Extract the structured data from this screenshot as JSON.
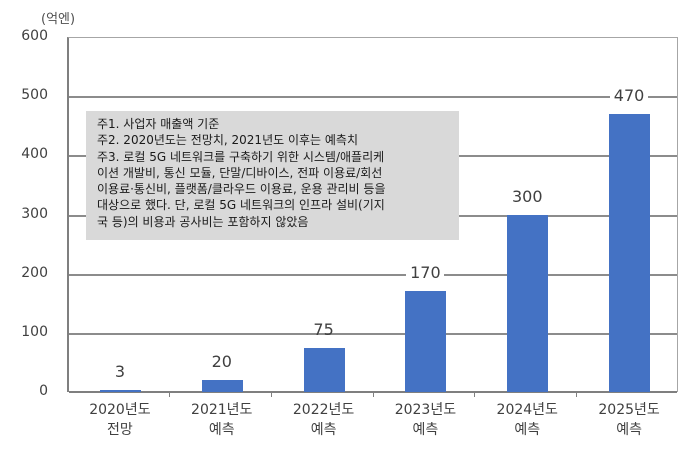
{
  "chart_data": {
    "type": "bar",
    "title": "",
    "unit_label": "(억엔)",
    "xlabel": "",
    "ylabel": "(억엔)",
    "ylim": [
      0,
      600
    ],
    "yticks": [
      "0",
      "100",
      "200",
      "300",
      "400",
      "500",
      "600"
    ],
    "grid": true,
    "bar_color": "#4472c4",
    "categories": [
      "2020년도 전망",
      "2021년도 예측",
      "2022년도 예측",
      "2023년도 예측",
      "2024년도 예측",
      "2025년도 예측"
    ],
    "category_lines": [
      [
        "2020년도",
        "전망"
      ],
      [
        "2021년도",
        "예측"
      ],
      [
        "2022년도",
        "예측"
      ],
      [
        "2023년도",
        "예측"
      ],
      [
        "2024년도",
        "예측"
      ],
      [
        "2025년도",
        "예측"
      ]
    ],
    "values": [
      3,
      20,
      75,
      170,
      300,
      470
    ],
    "data_labels": [
      "3",
      "20",
      "75",
      "170",
      "300",
      "470"
    ],
    "notes": [
      "주1. 사업자 매출액 기준",
      "주2. 2020년도는 전망치, 2021년도 이후는 예측치",
      "주3. 로컬 5G 네트워크를 구축하기 위한 시스템/애플리케",
      "이션 개발비, 통신 모듈, 단말/디바이스, 전파 이용료/회선",
      "이용료·통신비, 플랫폼/클라우드 이용료, 운용 관리비 등을",
      "대상으로 했다. 단, 로컬 5G 네트워크의 인프라 설비(기지",
      "국 등)의 비용과 공사비는 포함하지 않았음"
    ]
  }
}
